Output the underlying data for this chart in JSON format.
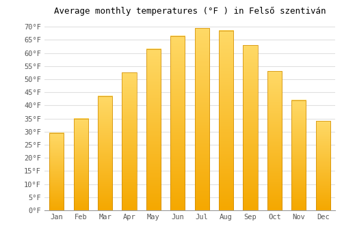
{
  "title": "Average monthly temperatures (°F ) in Felső szentiván",
  "months": [
    "Jan",
    "Feb",
    "Mar",
    "Apr",
    "May",
    "Jun",
    "Jul",
    "Aug",
    "Sep",
    "Oct",
    "Nov",
    "Dec"
  ],
  "values": [
    29.5,
    35.0,
    43.5,
    52.5,
    61.5,
    66.5,
    69.5,
    68.5,
    63.0,
    53.0,
    42.0,
    34.0
  ],
  "bar_color_bottom": "#F5A800",
  "bar_color_top": "#FFD966",
  "bar_edge_color": "#CC8800",
  "background_color": "#ffffff",
  "grid_color": "#e0e0e0",
  "ylim": [
    0,
    72
  ],
  "yticks": [
    0,
    5,
    10,
    15,
    20,
    25,
    30,
    35,
    40,
    45,
    50,
    55,
    60,
    65,
    70
  ],
  "ytick_labels": [
    "0°F",
    "5°F",
    "10°F",
    "15°F",
    "20°F",
    "25°F",
    "30°F",
    "35°F",
    "40°F",
    "45°F",
    "50°F",
    "55°F",
    "60°F",
    "65°F",
    "70°F"
  ],
  "title_fontsize": 9,
  "tick_fontsize": 7.5
}
